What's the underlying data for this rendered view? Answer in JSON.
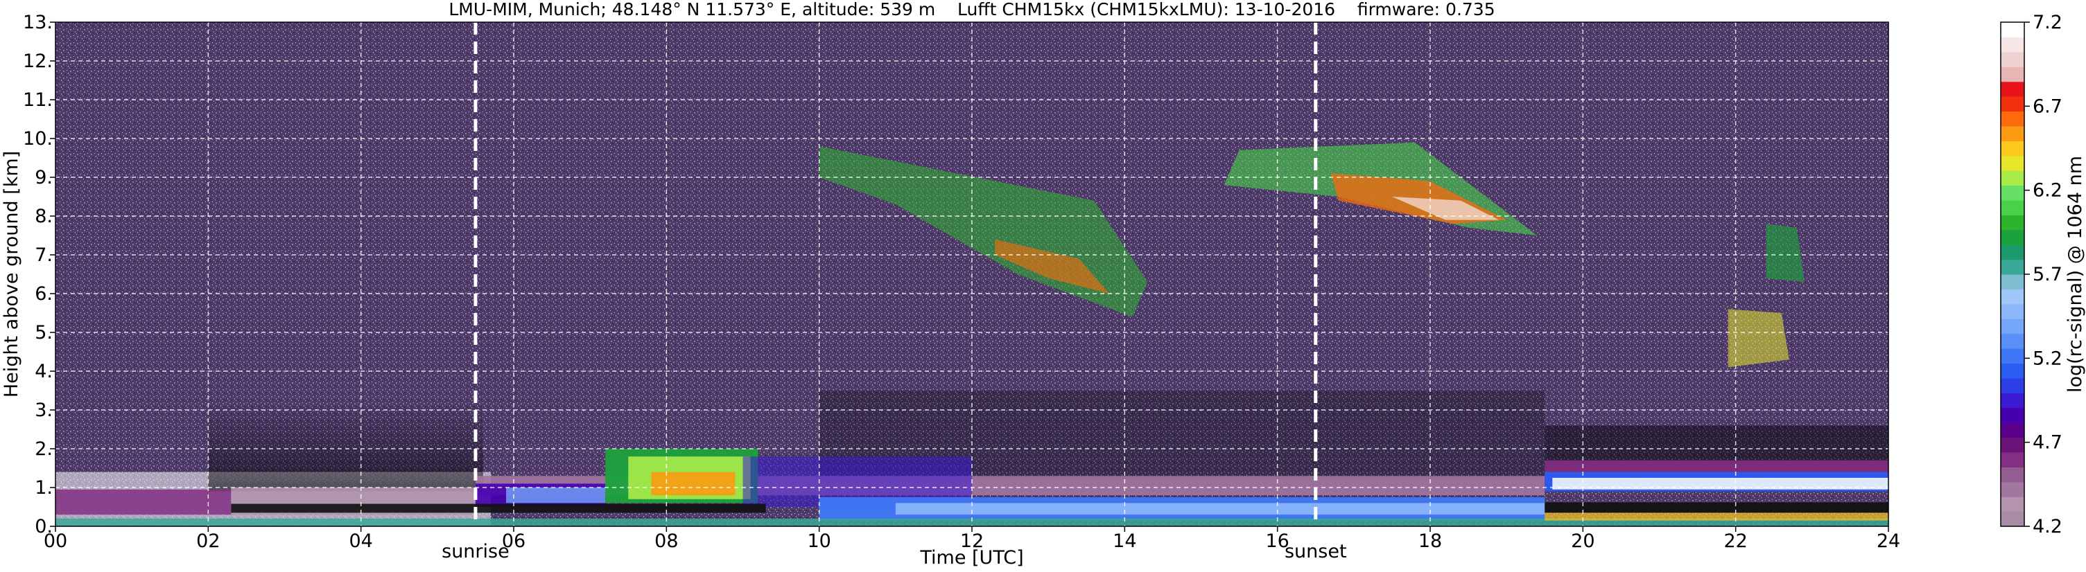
{
  "chart_data": {
    "type": "heatmap",
    "title": "LMU-MIM, Munich; 48.148° N 11.573° E, altitude: 539 m    Lufft CHM15kx (CHM15kxLMU): 13-10-2016    firmware: 0.735",
    "xlabel": "Time [UTC]",
    "ylabel": "Height above ground [km]",
    "xlim": [
      0,
      24
    ],
    "ylim": [
      0,
      13
    ],
    "x_ticks": [
      0,
      2,
      4,
      6,
      8,
      10,
      12,
      14,
      16,
      18,
      20,
      22,
      24
    ],
    "x_tick_labels": [
      "00",
      "02",
      "04",
      "06",
      "08",
      "10",
      "12",
      "14",
      "16",
      "18",
      "20",
      "22",
      "24"
    ],
    "y_ticks": [
      0,
      1,
      2,
      3,
      4,
      5,
      6,
      7,
      8,
      9,
      10,
      11,
      12,
      13
    ],
    "y_tick_labels": [
      "0.",
      "1.",
      "2.",
      "3.",
      "4.",
      "5.",
      "6.",
      "7.",
      "8.",
      "9.",
      "10.",
      "11.",
      "12.",
      "13."
    ],
    "grid": true,
    "colorbar": {
      "label": "log(rc-signal) @ 1064 nm",
      "range": [
        4.2,
        7.2
      ],
      "ticks": [
        4.2,
        4.7,
        5.2,
        5.7,
        6.2,
        6.7,
        7.2
      ],
      "tick_labels": [
        "4.2",
        "4.7",
        "5.2",
        "5.7",
        "6.2",
        "6.7",
        "7.2"
      ],
      "colors": [
        "#a88ba5",
        "#b393ae",
        "#a376a0",
        "#935d92",
        "#842f84",
        "#6c1378",
        "#5a008c",
        "#4600b0",
        "#3a1ad2",
        "#2e3fe8",
        "#2a5cf2",
        "#3e78f6",
        "#5890f8",
        "#74a6fa",
        "#8cb8fa",
        "#a0c6fa",
        "#7ebcd2",
        "#3aa896",
        "#1c9a6e",
        "#1ca23c",
        "#2cb42c",
        "#48d248",
        "#66e066",
        "#a8ec4a",
        "#e6e62a",
        "#fcc81c",
        "#fc9a12",
        "#fc6a0c",
        "#f2320e",
        "#e8141a",
        "#e8b4b4",
        "#eed2d2",
        "#f6e6e6",
        "#ffffff"
      ]
    },
    "annotations": [
      {
        "label": "sunrise",
        "x": 5.5
      },
      {
        "label": "sunset",
        "x": 16.5
      }
    ]
  }
}
